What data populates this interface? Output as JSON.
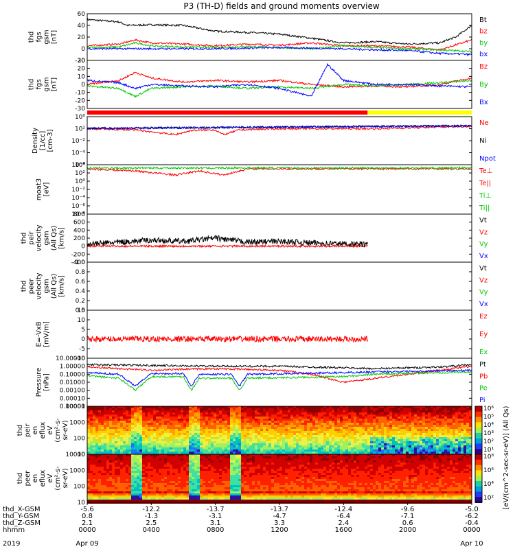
{
  "title": "P3 (TH-D) fields and ground moments overview",
  "colors": {
    "black": "#000000",
    "red": "#ff0000",
    "green": "#00c800",
    "blue": "#0000ff",
    "yellow": "#ffff00"
  },
  "chart_data": [
    {
      "type": "line",
      "id": "fgs_btot",
      "ylabel": [
        "thd",
        "fgs",
        "gsm",
        "[nT]"
      ],
      "ylim": [
        -20,
        60
      ],
      "yticks": [
        "60",
        "40",
        "20",
        "0",
        "-20"
      ],
      "legend": [
        "Bt",
        "bz",
        "by",
        "bx"
      ],
      "series": [
        {
          "name": "Bt",
          "color": "black",
          "points": [
            [
              0,
              50
            ],
            [
              2,
              46
            ],
            [
              2.5,
              40
            ],
            [
              4,
              41
            ],
            [
              6,
              40
            ],
            [
              8,
              30
            ],
            [
              10,
              28
            ],
            [
              12,
              25
            ],
            [
              14,
              18
            ],
            [
              16,
              10
            ],
            [
              18,
              12
            ],
            [
              20,
              8
            ],
            [
              22,
              10
            ],
            [
              23,
              20
            ],
            [
              24,
              40
            ]
          ]
        },
        {
          "name": "bz",
          "color": "red",
          "points": [
            [
              0,
              5
            ],
            [
              2,
              8
            ],
            [
              3,
              15
            ],
            [
              4,
              10
            ],
            [
              6,
              8
            ],
            [
              8,
              5
            ],
            [
              10,
              8
            ],
            [
              12,
              6
            ],
            [
              14,
              10
            ],
            [
              16,
              5
            ],
            [
              18,
              5
            ],
            [
              20,
              3
            ],
            [
              22,
              -2
            ],
            [
              24,
              15
            ]
          ]
        },
        {
          "name": "by",
          "color": "green",
          "points": [
            [
              0,
              2
            ],
            [
              2,
              3
            ],
            [
              3,
              10
            ],
            [
              4,
              5
            ],
            [
              6,
              3
            ],
            [
              8,
              2
            ],
            [
              10,
              4
            ],
            [
              12,
              2
            ],
            [
              14,
              0
            ],
            [
              16,
              5
            ],
            [
              18,
              2
            ],
            [
              20,
              0
            ],
            [
              22,
              -2
            ],
            [
              24,
              -5
            ]
          ]
        },
        {
          "name": "bx",
          "color": "blue",
          "points": [
            [
              0,
              0
            ],
            [
              4,
              0
            ],
            [
              8,
              0
            ],
            [
              12,
              2
            ],
            [
              16,
              0
            ],
            [
              18,
              -2
            ],
            [
              20,
              -3
            ],
            [
              22,
              -8
            ],
            [
              24,
              -10
            ]
          ]
        }
      ]
    },
    {
      "type": "line",
      "id": "fgs_gsm",
      "ylabel": [
        "thd",
        "fgs",
        "gsm",
        "[nT]"
      ],
      "ylim": [
        -30,
        30
      ],
      "yticks": [
        "30",
        "20",
        "10",
        "0",
        "-10",
        "-20",
        "-30"
      ],
      "legend": [
        "Bz",
        "By",
        "Bx"
      ],
      "series": [
        {
          "name": "Bz",
          "color": "red",
          "points": [
            [
              0,
              0
            ],
            [
              2,
              5
            ],
            [
              3,
              15
            ],
            [
              4,
              8
            ],
            [
              6,
              3
            ],
            [
              8,
              5
            ],
            [
              10,
              3
            ],
            [
              12,
              5
            ],
            [
              14,
              0
            ],
            [
              16,
              -3
            ],
            [
              18,
              -2
            ],
            [
              20,
              -3
            ],
            [
              22,
              0
            ],
            [
              24,
              8
            ]
          ]
        },
        {
          "name": "By",
          "color": "green",
          "points": [
            [
              0,
              -2
            ],
            [
              2,
              -5
            ],
            [
              3,
              -15
            ],
            [
              4,
              -5
            ],
            [
              6,
              -3
            ],
            [
              8,
              -2
            ],
            [
              10,
              -5
            ],
            [
              12,
              -3
            ],
            [
              14,
              -5
            ],
            [
              16,
              0
            ],
            [
              18,
              -2
            ],
            [
              20,
              0
            ],
            [
              22,
              2
            ],
            [
              24,
              5
            ]
          ]
        },
        {
          "name": "Bx",
          "color": "blue",
          "points": [
            [
              0,
              5
            ],
            [
              2,
              2
            ],
            [
              3,
              -5
            ],
            [
              4,
              0
            ],
            [
              6,
              -2
            ],
            [
              8,
              -3
            ],
            [
              10,
              0
            ],
            [
              12,
              -5
            ],
            [
              14,
              -15
            ],
            [
              15,
              25
            ],
            [
              16,
              5
            ],
            [
              18,
              0
            ],
            [
              20,
              0
            ],
            [
              22,
              -2
            ],
            [
              24,
              -3
            ]
          ]
        }
      ]
    },
    {
      "type": "line",
      "id": "density",
      "ylabel": [
        "Density",
        "[1/cc]",
        "[cm-3]"
      ],
      "log": true,
      "ylim": [
        -6,
        2
      ],
      "yticks": [
        "10⁰",
        "10²",
        "10⁻²",
        "10⁻⁴",
        "10⁻⁶"
      ],
      "legend": [
        "Ne",
        "Ni",
        "Npot"
      ],
      "series": [
        {
          "name": "Ne",
          "color": "red",
          "points": [
            [
              0,
              0
            ],
            [
              3,
              -0.2
            ],
            [
              5.5,
              -1
            ],
            [
              6.5,
              -0.3
            ],
            [
              8,
              -0.2
            ],
            [
              8.5,
              -1
            ],
            [
              9.5,
              -0.2
            ],
            [
              12,
              0
            ],
            [
              18,
              0
            ],
            [
              24,
              0.4
            ]
          ]
        },
        {
          "name": "Ni",
          "color": "black",
          "points": [
            [
              0,
              0.05
            ],
            [
              24,
              0.5
            ]
          ]
        },
        {
          "name": "Npot",
          "color": "blue",
          "points": [
            [
              0,
              0.05
            ],
            [
              24,
              0.45
            ]
          ]
        }
      ]
    },
    {
      "type": "line",
      "id": "moat3",
      "ylabel": [
        "moat3",
        "[eV]"
      ],
      "log": true,
      "ylim": [
        -8,
        4
      ],
      "yticks": [
        "10⁴",
        "10²",
        "10⁰",
        "10⁻²",
        "10⁻⁴",
        "10⁻⁶",
        "10⁻⁸"
      ],
      "legend": [
        "Te⊥",
        "Te||",
        "Ti⊥",
        "Ti||"
      ],
      "series": [
        {
          "name": "Te⊥",
          "color": "red",
          "points": [
            [
              0,
              3
            ],
            [
              3,
              2.5
            ],
            [
              5.5,
              1.5
            ],
            [
              7,
              2.5
            ],
            [
              8.5,
              1.5
            ],
            [
              10,
              3
            ],
            [
              24,
              3
            ]
          ]
        },
        {
          "name": "Ti||",
          "color": "green",
          "points": [
            [
              0,
              3.2
            ],
            [
              24,
              3.2
            ]
          ]
        }
      ]
    },
    {
      "type": "line",
      "id": "peir_velocity",
      "ylabel": [
        "thd",
        "peir",
        "velocity",
        "gsm",
        "(All Qs)",
        "[km/s]"
      ],
      "ylim": [
        -400,
        800
      ],
      "yticks": [
        "800",
        "600",
        "400",
        "200",
        "0",
        "-200",
        "-400"
      ],
      "legend": [
        "Vt",
        "Vz",
        "Vy",
        "Vx"
      ],
      "end_hour": 17.5,
      "series": [
        {
          "name": "Vt",
          "color": "black",
          "points": [
            [
              0,
              50
            ],
            [
              2,
              100
            ],
            [
              4,
              150
            ],
            [
              6,
              120
            ],
            [
              8,
              200
            ],
            [
              10,
              100
            ],
            [
              12,
              120
            ],
            [
              14,
              80
            ],
            [
              16,
              60
            ],
            [
              17.5,
              40
            ]
          ]
        },
        {
          "name": "Vz",
          "color": "red",
          "points": [
            [
              0,
              0
            ],
            [
              17.5,
              0
            ]
          ]
        }
      ]
    },
    {
      "type": "line",
      "id": "peer_velocity",
      "ylabel": [
        "thd",
        "peer",
        "velocity",
        "gsm",
        "(All Qs)",
        "[km/s]"
      ],
      "ylim": [
        0,
        1
      ],
      "yticks": [
        "1.0",
        "0.8",
        "0.6",
        "0.4",
        "0.2",
        "0.0"
      ],
      "legend": [
        "Vt",
        "Vz",
        "Vy",
        "Vx"
      ],
      "series": []
    },
    {
      "type": "line",
      "id": "efield",
      "ylabel": [
        "E=-VxB",
        "[mV/m]"
      ],
      "ylim": [
        -10,
        15
      ],
      "yticks": [
        "15",
        "10",
        "5",
        "0",
        "-5",
        "-10"
      ],
      "legend": [
        "Ez",
        "Ey",
        "Ex"
      ],
      "end_hour": 17.5,
      "series": [
        {
          "name": "Ez",
          "color": "red",
          "points": [
            [
              0,
              0
            ],
            [
              17.5,
              0
            ]
          ]
        }
      ]
    },
    {
      "type": "line",
      "id": "pressure",
      "ylabel": [
        "Pressure",
        "[nPa]"
      ],
      "log": true,
      "ylim": [
        -5,
        1
      ],
      "yticks": [
        "10.00000",
        "1.00000",
        "0.10000",
        "0.01000",
        "0.00100",
        "0.00010",
        "0.00001"
      ],
      "legend": [
        "Pt",
        "Pb",
        "Pe",
        "Pi"
      ],
      "series": [
        {
          "name": "Pt",
          "color": "black",
          "points": [
            [
              0,
              0.2
            ],
            [
              4,
              0.1
            ],
            [
              8,
              0
            ],
            [
              12,
              0
            ],
            [
              16,
              -0.2
            ],
            [
              18,
              -0.3
            ],
            [
              22,
              -0.1
            ],
            [
              24,
              0.2
            ]
          ]
        },
        {
          "name": "Pb",
          "color": "red",
          "points": [
            [
              0,
              -0.1
            ],
            [
              4,
              -0.5
            ],
            [
              8,
              -0.3
            ],
            [
              12,
              -0.5
            ],
            [
              14,
              -1
            ],
            [
              16,
              -2
            ],
            [
              18,
              -1.5
            ],
            [
              20,
              -1
            ],
            [
              24,
              0
            ]
          ]
        },
        {
          "name": "Pe",
          "color": "green",
          "points": [
            [
              0,
              -1.2
            ],
            [
              2,
              -1.5
            ],
            [
              3,
              -3
            ],
            [
              4,
              -1.3
            ],
            [
              6,
              -1.3
            ],
            [
              6.5,
              -3
            ],
            [
              7,
              -1.5
            ],
            [
              9,
              -1.5
            ],
            [
              9.5,
              -3
            ],
            [
              10,
              -1.5
            ],
            [
              16,
              -1.3
            ],
            [
              18,
              -1
            ],
            [
              24,
              -0.7
            ]
          ]
        },
        {
          "name": "Pi",
          "color": "blue",
          "points": [
            [
              0,
              -0.8
            ],
            [
              2,
              -1
            ],
            [
              3,
              -2.5
            ],
            [
              4,
              -0.9
            ],
            [
              6,
              -0.9
            ],
            [
              6.5,
              -2.5
            ],
            [
              7,
              -1
            ],
            [
              9,
              -1
            ],
            [
              9.5,
              -2.5
            ],
            [
              10,
              -1
            ],
            [
              16,
              -0.8
            ],
            [
              18,
              -0.7
            ],
            [
              24,
              -0.5
            ]
          ]
        }
      ]
    },
    {
      "type": "heatmap",
      "id": "peir_eflux",
      "ylabel": [
        "thd",
        "peir",
        "en",
        "eflux",
        "eV",
        "(cm²-s-",
        "sr-eV)"
      ],
      "yticks": [
        "10000",
        "1000",
        "100",
        "10"
      ],
      "colorbar": {
        "ticks": [
          "10⁶",
          "10⁵",
          "10⁴",
          "10³",
          "10²",
          "10¹"
        ],
        "label": "[eV/(cm^2-sec-sr-eV)] (All Qs)"
      }
    },
    {
      "type": "heatmap",
      "id": "peer_eflux",
      "ylabel": [
        "thd",
        "peer",
        "en",
        "eflux",
        "eV",
        "(cm²-s-",
        "sr-eV)"
      ],
      "yticks": [
        "10000",
        "1000",
        "100",
        "10"
      ],
      "colorbar": {
        "ticks": [
          "10⁸",
          "10⁶",
          "10⁴",
          "10²"
        ]
      }
    }
  ],
  "xaxis": {
    "rows": [
      {
        "label": "thd_X-GSM",
        "values": [
          "-5.6",
          "-12.2",
          "-13.7",
          "-13.7",
          "-12.4",
          "-9.6",
          "-5.0"
        ]
      },
      {
        "label": "thd_Y-GSM",
        "values": [
          "0.8",
          "-1.3",
          "-3.1",
          "-4.7",
          "-6.4",
          "-7.1",
          "-6.2"
        ]
      },
      {
        "label": "thd_Z-GSM",
        "values": [
          "2.1",
          "2.5",
          "3.1",
          "3.3",
          "2.4",
          "0.6",
          "-0.4"
        ]
      },
      {
        "label": "hhmm",
        "values": [
          "0000",
          "0400",
          "0800",
          "1200",
          "1600",
          "2000",
          "0000"
        ]
      }
    ],
    "year": "2019",
    "start_date": "Apr 09",
    "end_date": "Apr 10"
  }
}
